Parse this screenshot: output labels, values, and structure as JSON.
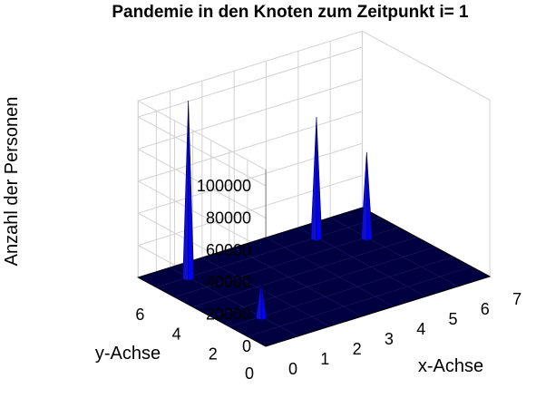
{
  "chart_data": {
    "type": "surface",
    "title": "Pandemie in den Knoten zum Zeitpunkt i= 1",
    "xlabel": "x-Achse",
    "ylabel": "y-Achse",
    "zlabel": "Anzahl der Personen",
    "xlim": [
      0,
      7
    ],
    "ylim": [
      0,
      7
    ],
    "zlim": [
      0,
      110000
    ],
    "xticks": [
      "0",
      "1",
      "2",
      "3",
      "4",
      "5",
      "6",
      "7"
    ],
    "yticks": [
      "0",
      "2",
      "4",
      "6"
    ],
    "zticks": [
      "0",
      "20000",
      "40000",
      "60000",
      "80000",
      "100000"
    ],
    "grid": true,
    "colormap": [
      "#000040",
      "#0000ff"
    ],
    "peaks": [
      {
        "x": 1,
        "y": 6,
        "z": 110000
      },
      {
        "x": 5,
        "y": 6,
        "z": 75000
      },
      {
        "x": 6,
        "y": 5,
        "z": 53000
      },
      {
        "x": 1,
        "y": 2,
        "z": 22000
      }
    ]
  }
}
